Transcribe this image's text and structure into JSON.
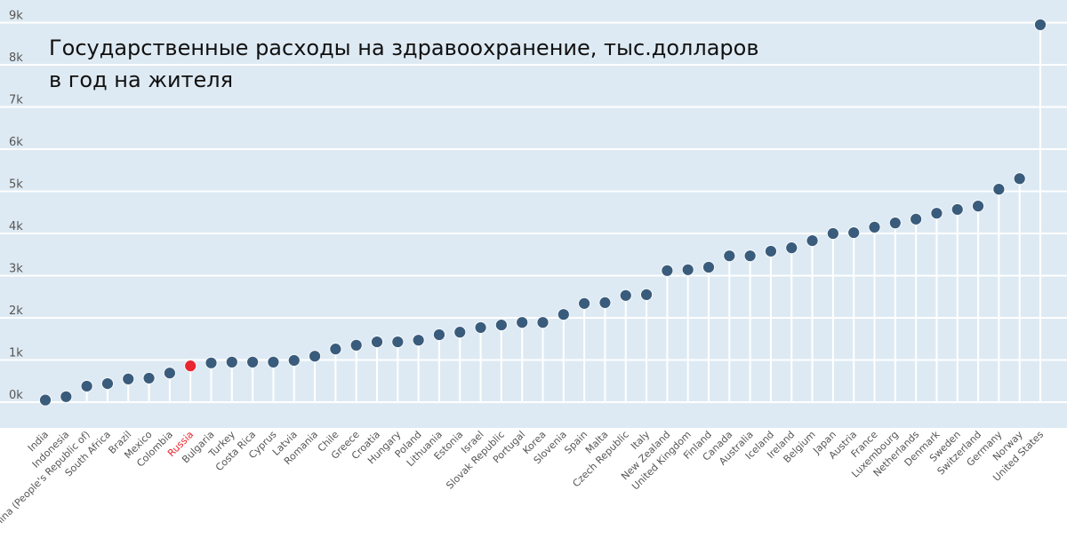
{
  "chart_data": {
    "type": "lollipop",
    "title": "Государственные расходы на здравоохранение, тыс.долларов в год на жителя",
    "xlabel": "",
    "ylabel": "",
    "ylim": [
      -0.6,
      9.5
    ],
    "yticks": [
      0,
      1,
      2,
      3,
      4,
      5,
      6,
      7,
      8,
      9
    ],
    "ytick_labels": [
      "0k",
      "1k",
      "2k",
      "3k",
      "4k",
      "5k",
      "6k",
      "7k",
      "8k",
      "9k"
    ],
    "grid": true,
    "highlight": "Russia",
    "colors": {
      "point": "#3a5c7c",
      "highlight": "#e8262f",
      "background": "#deeaf3",
      "grid": "#ffffff",
      "label": "#555555"
    },
    "categories": [
      "India",
      "Indonesia",
      "China (People's Republic of)",
      "South Africa",
      "Brazil",
      "Mexico",
      "Colombia",
      "Russia",
      "Bulgaria",
      "Turkey",
      "Costa Rica",
      "Cyprus",
      "Latvia",
      "Romania",
      "Chile",
      "Greece",
      "Croatia",
      "Hungary",
      "Poland",
      "Lithuania",
      "Estonia",
      "Israel",
      "Slovak Republic",
      "Portugal",
      "Korea",
      "Slovenia",
      "Spain",
      "Malta",
      "Czech Republic",
      "Italy",
      "New Zealand",
      "United Kingdom",
      "Finland",
      "Canada",
      "Australia",
      "Iceland",
      "Ireland",
      "Belgium",
      "Japan",
      "Austria",
      "France",
      "Luxembourg",
      "Netherlands",
      "Denmark",
      "Sweden",
      "Switzerland",
      "Germany",
      "Norway",
      "United States"
    ],
    "values": [
      0.05,
      0.13,
      0.38,
      0.44,
      0.55,
      0.57,
      0.69,
      0.86,
      0.93,
      0.95,
      0.95,
      0.95,
      0.99,
      1.09,
      1.26,
      1.35,
      1.43,
      1.43,
      1.47,
      1.6,
      1.66,
      1.77,
      1.83,
      1.89,
      1.89,
      2.08,
      2.34,
      2.36,
      2.53,
      2.55,
      3.12,
      3.14,
      3.2,
      3.47,
      3.47,
      3.58,
      3.66,
      3.83,
      4.0,
      4.02,
      4.15,
      4.25,
      4.34,
      4.48,
      4.57,
      4.65,
      5.05,
      5.3,
      8.95
    ]
  }
}
